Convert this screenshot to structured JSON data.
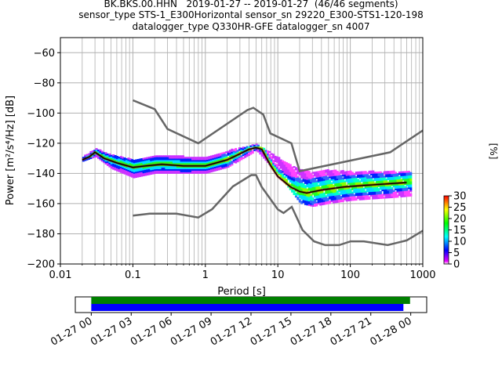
{
  "header": {
    "line1": "BK.BKS.00.HHN   2019-01-27 -- 2019-01-27  (46/46 segments)",
    "line2": "sensor_type STS-1_E300Horizontal sensor_sn 29220_E300-STS1-120-198",
    "line3": "datalogger_type Q330HR-GFE datalogger_sn 4007"
  },
  "chart_data": [
    {
      "type": "heatmap",
      "xlabel": "Period [s]",
      "ylabel": "Power [m²/s⁴/Hz] [dB]",
      "x_scale": "log",
      "xlim": [
        0.01,
        1000
      ],
      "ylim": [
        -200,
        -50
      ],
      "x_ticks": [
        0.01,
        0.1,
        1,
        10,
        100,
        1000
      ],
      "x_tick_labels": [
        "0.01",
        "0.1",
        "1",
        "10",
        "100",
        "1000"
      ],
      "y_ticks": [
        -200,
        -180,
        -160,
        -140,
        -120,
        -100,
        -80,
        -60
      ],
      "y_tick_labels": [
        "−200",
        "−180",
        "−160",
        "−140",
        "−120",
        "−100",
        "−80",
        "−60"
      ],
      "grid": true,
      "colorbar": {
        "label": "[%]",
        "range": [
          0,
          30
        ],
        "ticks": [
          0,
          5,
          10,
          15,
          20,
          25,
          30
        ],
        "tick_labels": [
          "0",
          "5",
          "10",
          "15",
          "20",
          "25",
          "30"
        ],
        "colormap": "pqlx"
      },
      "mean_curve": {
        "x": [
          0.02,
          0.025,
          0.03,
          0.04,
          0.06,
          0.1,
          0.15,
          0.25,
          0.5,
          1,
          2,
          3,
          4,
          5,
          6,
          8,
          10,
          15,
          20,
          25,
          40,
          80,
          150,
          300,
          600
        ],
        "y": [
          -131,
          -129,
          -126,
          -130,
          -133,
          -136,
          -135,
          -134,
          -135,
          -135,
          -131,
          -127,
          -124,
          -123,
          -124,
          -135,
          -142,
          -149,
          -152,
          -153,
          -151,
          -149,
          -148,
          -147,
          -146
        ]
      },
      "noise_models": [
        {
          "x": [
            0.1,
            0.2,
            0.3,
            0.8,
            3.8,
            4.6,
            6.3,
            7.9,
            15.4,
            20,
            354.8,
            1000
          ],
          "y": [
            -91.5,
            -97.4,
            -110.5,
            -120,
            -98,
            -96.5,
            -101,
            -113.5,
            -120,
            -138.5,
            -126,
            -111.5
          ]
        },
        {
          "x": [
            0.1,
            0.17,
            0.4,
            0.8,
            1.24,
            2.4,
            4.3,
            5,
            6,
            10,
            12,
            15.6,
            21.9,
            31.6,
            45,
            70,
            101,
            154,
            328,
            600,
            1000
          ],
          "y": [
            -168,
            -166.7,
            -166.7,
            -169.2,
            -163.7,
            -148.6,
            -141.1,
            -141.1,
            -149,
            -163.8,
            -166.2,
            -162.1,
            -177.5,
            -185,
            -187.5,
            -187.5,
            -185,
            -185,
            -187.5,
            -184.4,
            -178
          ]
        }
      ],
      "cloud": {
        "x": [
          0.02,
          0.03,
          0.05,
          0.1,
          0.2,
          0.5,
          1,
          2,
          5,
          10,
          15,
          20,
          30,
          50,
          100,
          200,
          400,
          700
        ],
        "y_low": [
          -132,
          -129,
          -137,
          -143,
          -140,
          -140,
          -140,
          -136,
          -125,
          -141,
          -152,
          -160,
          -162,
          -160,
          -158,
          -157,
          -156,
          -155
        ],
        "y_high": [
          -129,
          -124,
          -128,
          -131,
          -128,
          -129,
          -130,
          -125,
          -121,
          -130,
          -135,
          -138,
          -139,
          -138,
          -139,
          -139,
          -139,
          -139
        ]
      }
    },
    {
      "type": "bar",
      "x_tick_labels": [
        "01-27 00",
        "01-27 03",
        "01-27 06",
        "01-27 09",
        "01-27 12",
        "01-27 15",
        "01-27 18",
        "01-27 21",
        "01-28 00"
      ],
      "x_hours": [
        0,
        3,
        6,
        9,
        12,
        15,
        18,
        21,
        24
      ],
      "xlim_hours": [
        -1.2,
        25.2
      ],
      "bars": [
        {
          "start_hour": 0.0,
          "end_hour": 23.95,
          "color": "#008000"
        },
        {
          "start_hour": 0.0,
          "end_hour": 23.45,
          "color": "#0000ff"
        }
      ]
    }
  ]
}
